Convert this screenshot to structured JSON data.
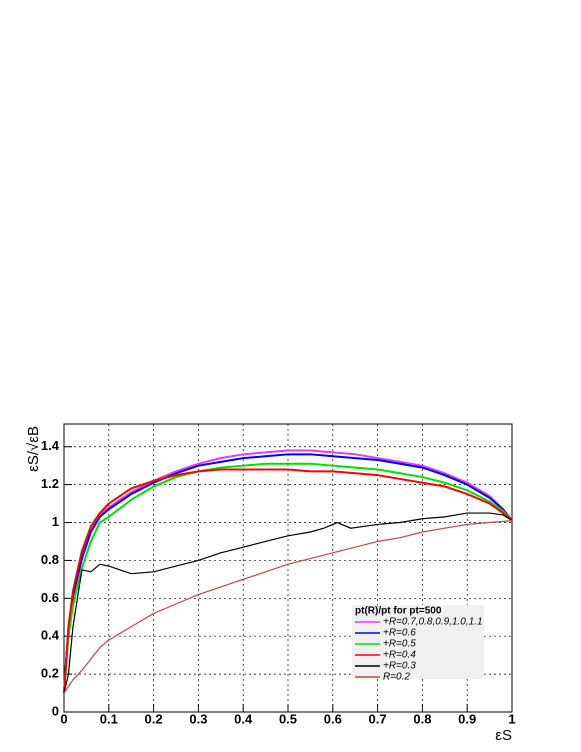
{
  "chart_data": {
    "type": "line",
    "xlabel": "εS",
    "ylabel": "εS/√εB",
    "legend_title": "pt(R)/pt for pt=500",
    "legend_position": "bottom right",
    "grid": true,
    "xlim": [
      0,
      1
    ],
    "ylim": [
      0,
      1.52
    ],
    "xticks": [
      0,
      0.1,
      0.2,
      0.3,
      0.4,
      0.5,
      0.6,
      0.7,
      0.8,
      0.9,
      1
    ],
    "yticks": [
      0,
      0.2,
      0.4,
      0.6,
      0.8,
      1,
      1.2,
      1.4
    ],
    "series": [
      {
        "name": "+R=0.7,0.8,0.9,1.0,1.1",
        "color": "#e040e0",
        "x": [
          0,
          0.01,
          0.02,
          0.04,
          0.06,
          0.08,
          0.1,
          0.15,
          0.2,
          0.25,
          0.3,
          0.35,
          0.4,
          0.45,
          0.5,
          0.55,
          0.6,
          0.65,
          0.7,
          0.75,
          0.8,
          0.85,
          0.9,
          0.95,
          0.98,
          1
        ],
        "values": [
          0.1,
          0.45,
          0.62,
          0.82,
          0.96,
          1.04,
          1.08,
          1.16,
          1.22,
          1.27,
          1.31,
          1.34,
          1.36,
          1.37,
          1.38,
          1.38,
          1.37,
          1.36,
          1.34,
          1.32,
          1.3,
          1.26,
          1.21,
          1.14,
          1.07,
          1.01
        ]
      },
      {
        "name": "+R=0.6",
        "color": "#0000ff",
        "x": [
          0,
          0.01,
          0.02,
          0.04,
          0.06,
          0.08,
          0.1,
          0.15,
          0.2,
          0.25,
          0.3,
          0.35,
          0.4,
          0.45,
          0.5,
          0.55,
          0.6,
          0.65,
          0.7,
          0.75,
          0.8,
          0.85,
          0.9,
          0.95,
          0.98,
          1
        ],
        "values": [
          0.1,
          0.44,
          0.61,
          0.81,
          0.95,
          1.03,
          1.07,
          1.15,
          1.21,
          1.26,
          1.3,
          1.32,
          1.34,
          1.35,
          1.36,
          1.36,
          1.35,
          1.34,
          1.33,
          1.31,
          1.29,
          1.25,
          1.2,
          1.13,
          1.07,
          1.01
        ]
      },
      {
        "name": "+R=0.5",
        "color": "#00e000",
        "x": [
          0,
          0.01,
          0.02,
          0.04,
          0.06,
          0.08,
          0.1,
          0.15,
          0.2,
          0.25,
          0.3,
          0.35,
          0.4,
          0.45,
          0.5,
          0.55,
          0.6,
          0.65,
          0.7,
          0.75,
          0.8,
          0.85,
          0.9,
          0.95,
          0.98,
          1
        ],
        "values": [
          0.1,
          0.4,
          0.56,
          0.76,
          0.9,
          1.0,
          1.03,
          1.12,
          1.19,
          1.24,
          1.27,
          1.29,
          1.3,
          1.31,
          1.31,
          1.31,
          1.3,
          1.29,
          1.28,
          1.26,
          1.24,
          1.21,
          1.17,
          1.11,
          1.06,
          1.01
        ]
      },
      {
        "name": "+R=0.4",
        "color": "#ff0000",
        "x": [
          0,
          0.01,
          0.02,
          0.04,
          0.06,
          0.08,
          0.1,
          0.15,
          0.2,
          0.25,
          0.3,
          0.35,
          0.4,
          0.45,
          0.5,
          0.55,
          0.6,
          0.65,
          0.7,
          0.75,
          0.8,
          0.85,
          0.9,
          0.95,
          0.98,
          1
        ],
        "values": [
          0.1,
          0.45,
          0.64,
          0.85,
          0.98,
          1.05,
          1.1,
          1.18,
          1.22,
          1.25,
          1.27,
          1.28,
          1.28,
          1.28,
          1.28,
          1.27,
          1.27,
          1.26,
          1.25,
          1.23,
          1.21,
          1.19,
          1.15,
          1.1,
          1.05,
          1.01
        ]
      },
      {
        "name": "+R=0.3",
        "color": "#000000",
        "x": [
          0,
          0.01,
          0.02,
          0.04,
          0.06,
          0.08,
          0.1,
          0.15,
          0.2,
          0.25,
          0.3,
          0.35,
          0.4,
          0.45,
          0.5,
          0.55,
          0.58,
          0.61,
          0.64,
          0.7,
          0.75,
          0.8,
          0.85,
          0.9,
          0.95,
          0.98,
          1
        ],
        "values": [
          0.1,
          0.2,
          0.45,
          0.75,
          0.74,
          0.78,
          0.77,
          0.73,
          0.74,
          0.77,
          0.8,
          0.84,
          0.87,
          0.9,
          0.93,
          0.95,
          0.97,
          1.0,
          0.97,
          0.99,
          1.0,
          1.02,
          1.03,
          1.05,
          1.05,
          1.04,
          1.01
        ]
      },
      {
        "name": "R=0.2",
        "color": "#c04848",
        "x": [
          0,
          0.02,
          0.04,
          0.08,
          0.1,
          0.15,
          0.2,
          0.25,
          0.3,
          0.35,
          0.4,
          0.45,
          0.5,
          0.55,
          0.6,
          0.65,
          0.7,
          0.75,
          0.8,
          0.85,
          0.9,
          0.95,
          1
        ],
        "values": [
          0.1,
          0.17,
          0.22,
          0.34,
          0.38,
          0.45,
          0.52,
          0.57,
          0.62,
          0.66,
          0.7,
          0.74,
          0.78,
          0.81,
          0.84,
          0.87,
          0.9,
          0.92,
          0.95,
          0.97,
          0.99,
          1.0,
          1.01
        ]
      }
    ]
  }
}
